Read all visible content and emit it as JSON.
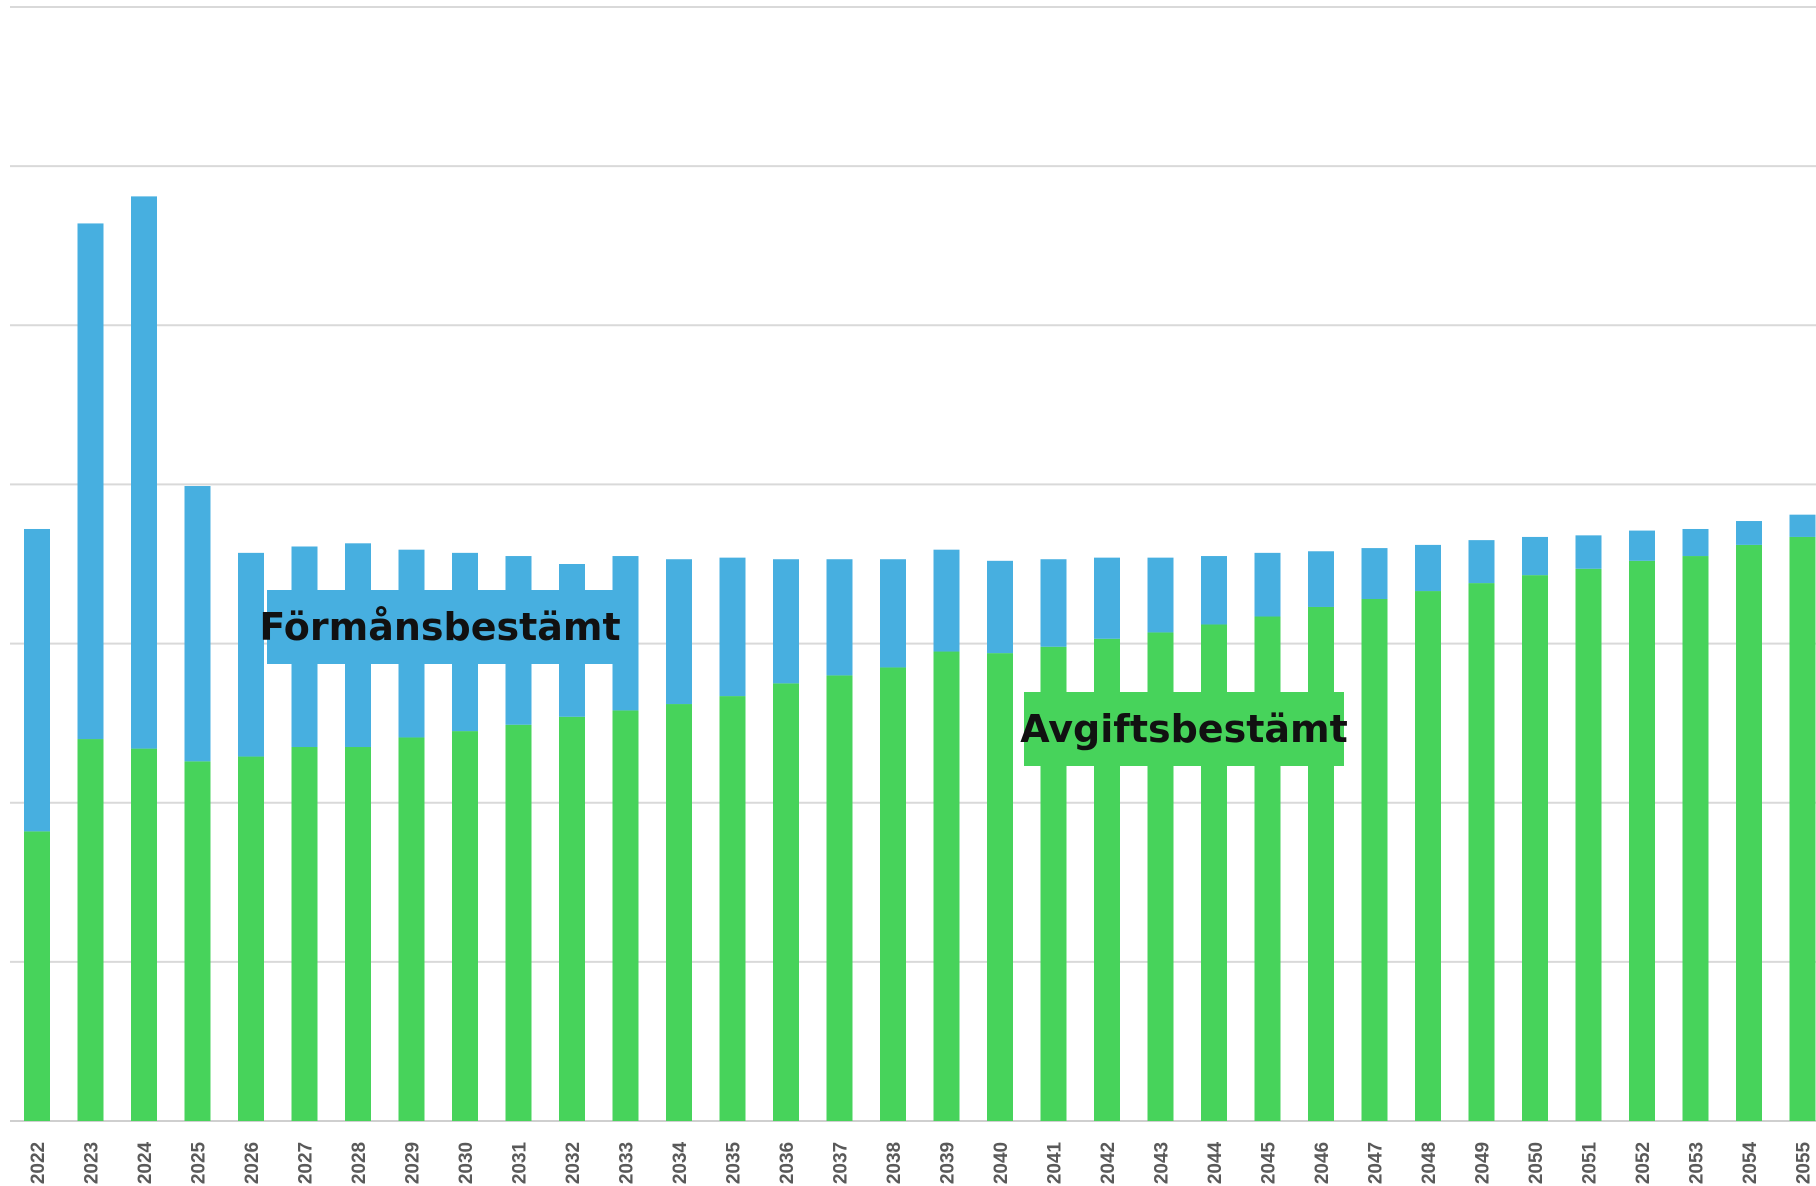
{
  "chart_data": {
    "type": "bar",
    "stacked": true,
    "categories": [
      "2022",
      "2023",
      "2024",
      "2025",
      "2026",
      "2027",
      "2028",
      "2029",
      "2030",
      "2031",
      "2032",
      "2033",
      "2034",
      "2035",
      "2036",
      "2037",
      "2038",
      "2039",
      "2040",
      "2041",
      "2042",
      "2043",
      "2044",
      "2045",
      "2046",
      "2047",
      "2048",
      "2049",
      "2050",
      "2051",
      "2052",
      "2053",
      "2054",
      "2055"
    ],
    "series": [
      {
        "name": "Avgiftsbestämt",
        "color": "#47d35b",
        "values": [
          18.2,
          24.0,
          23.4,
          22.6,
          22.9,
          23.5,
          23.5,
          24.1,
          24.5,
          24.9,
          25.4,
          25.8,
          26.2,
          26.7,
          27.5,
          28.0,
          28.5,
          29.5,
          29.4,
          29.8,
          30.3,
          30.7,
          31.2,
          31.7,
          32.3,
          32.8,
          33.3,
          33.8,
          34.3,
          34.7,
          35.2,
          35.5,
          36.2,
          36.7
        ]
      },
      {
        "name": "Förmånsbestämt",
        "color": "#47afe0",
        "values": [
          19.0,
          32.4,
          34.7,
          17.3,
          12.8,
          12.6,
          12.8,
          11.8,
          11.2,
          10.6,
          9.6,
          9.7,
          9.1,
          8.7,
          7.8,
          7.3,
          6.8,
          6.4,
          5.8,
          5.5,
          5.1,
          4.7,
          4.3,
          4.0,
          3.5,
          3.2,
          2.9,
          2.7,
          2.4,
          2.1,
          1.9,
          1.7,
          1.5,
          1.4
        ]
      }
    ],
    "ylim": [
      0,
      70
    ],
    "grid": true,
    "legend": "none",
    "annotations": [
      {
        "text": "Förmånsbestämt",
        "series": "Förmånsbestämt"
      },
      {
        "text": "Avgiftsbestämt",
        "series": "Avgiftsbestämt"
      }
    ]
  }
}
